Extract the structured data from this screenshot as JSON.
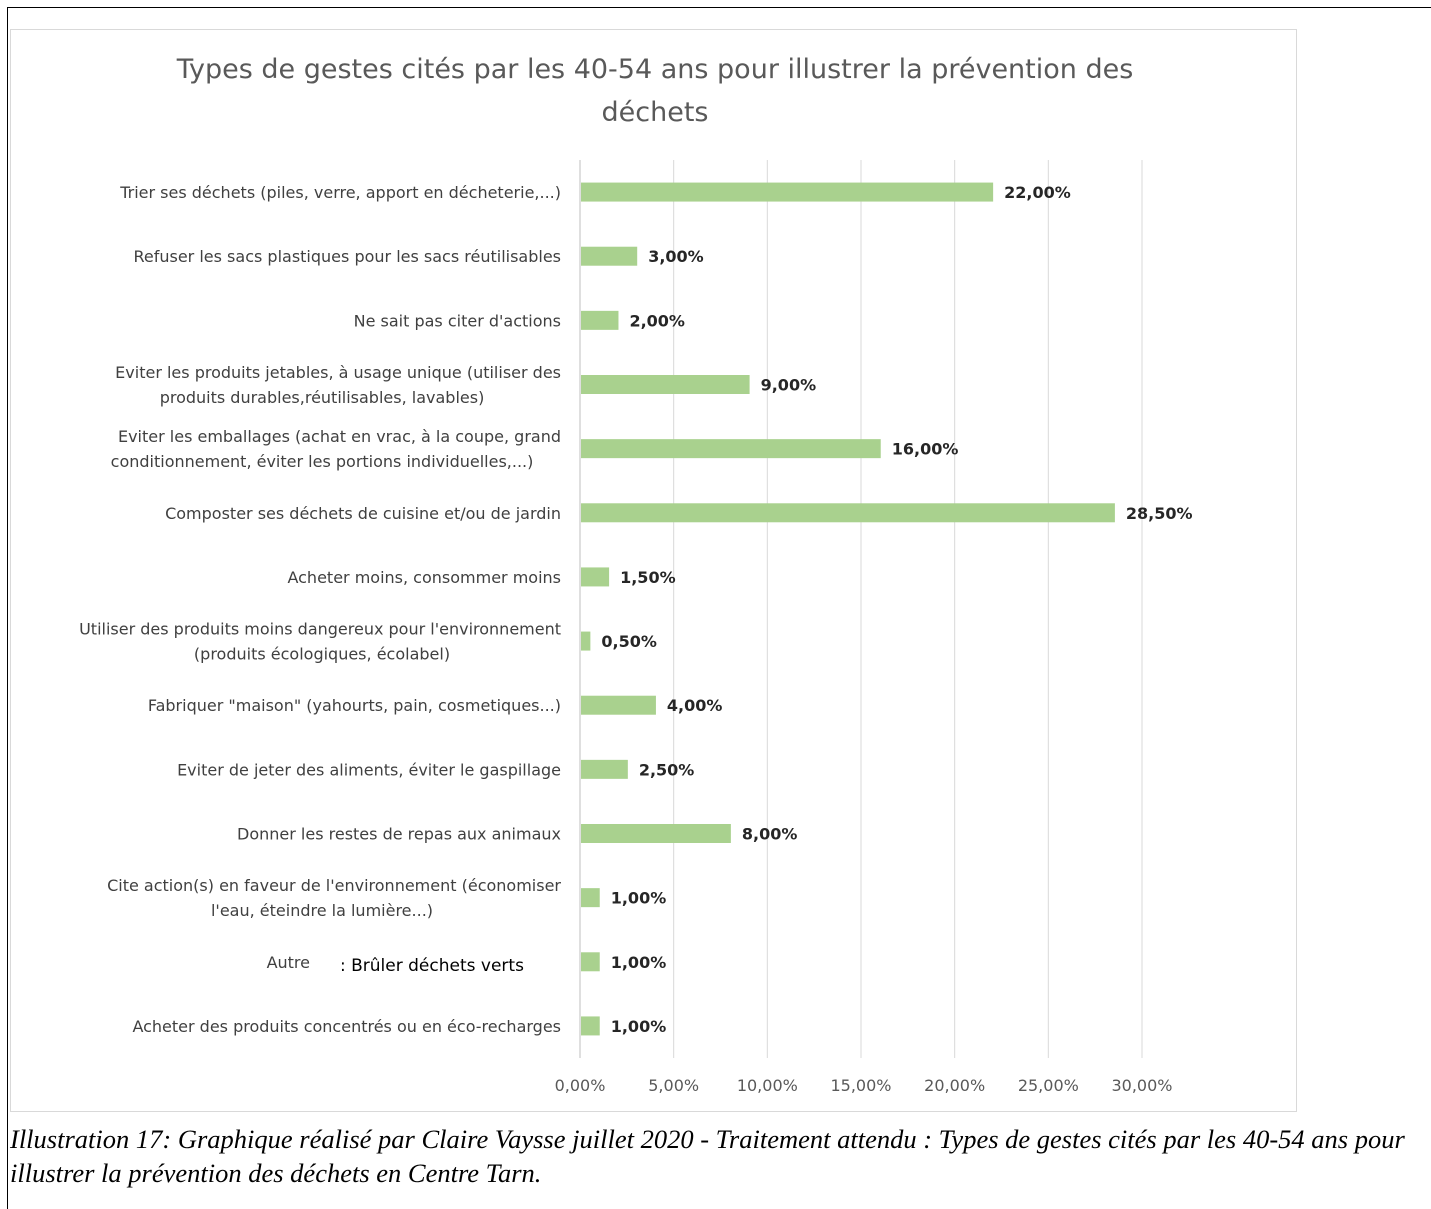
{
  "chart_data": {
    "type": "bar",
    "orientation": "horizontal",
    "title": "Types de gestes cités par les 40-54 ans pour illustrer la prévention des déchets",
    "title_lines": [
      "Types de gestes cités par les 40-54 ans pour illustrer la prévention des",
      "déchets"
    ],
    "categories": [
      "Trier ses déchets (piles, verre, apport en décheterie,...)",
      "Refuser les sacs plastiques pour les sacs réutilisables",
      "Ne sait pas citer d'actions",
      "Eviter les produits jetables, à usage unique (utiliser des produits durables,réutilisables, lavables)",
      "Eviter les emballages (achat en vrac, à la coupe, grand conditionnement, éviter les portions individuelles,...)",
      "Composter ses déchets de cuisine et/ou de jardin",
      "Acheter moins, consommer moins",
      "Utiliser des produits moins dangereux pour l'environnement (produits écologiques, écolabel)",
      "Fabriquer \"maison\" (yahourts, pain, cosmetiques...)",
      "Eviter de jeter des aliments, éviter le gaspillage",
      "Donner les restes de repas aux animaux",
      "Cite action(s) en faveur de l'environnement (économiser l'eau, éteindre la lumière...)",
      "Autre",
      "Acheter des produits concentrés ou en éco-recharges"
    ],
    "category_lines": [
      [
        "Trier ses déchets (piles, verre, apport en décheterie,...)"
      ],
      [
        "Refuser les sacs plastiques pour les sacs réutilisables"
      ],
      [
        "Ne sait pas citer d'actions"
      ],
      [
        "Eviter les produits jetables, à usage unique (utiliser des",
        "produits durables,réutilisables, lavables)"
      ],
      [
        "Eviter les emballages (achat en vrac, à la coupe, grand",
        "conditionnement, éviter les portions individuelles,...)"
      ],
      [
        "Composter ses déchets de cuisine et/ou de jardin"
      ],
      [
        "Acheter moins, consommer moins"
      ],
      [
        "Utiliser des produits moins dangereux pour l'environnement",
        "(produits écologiques, écolabel)"
      ],
      [
        "Fabriquer \"maison\" (yahourts, pain, cosmetiques...)"
      ],
      [
        "Eviter de jeter des aliments, éviter le gaspillage"
      ],
      [
        "Donner les restes de repas aux animaux"
      ],
      [
        "Cite action(s) en faveur de l'environnement (économiser",
        "l'eau, éteindre la lumière...)"
      ],
      [
        "Autre"
      ],
      [
        "Acheter des produits concentrés ou en éco-recharges"
      ]
    ],
    "values": [
      22.0,
      3.0,
      2.0,
      9.0,
      16.0,
      28.5,
      1.5,
      0.5,
      4.0,
      2.5,
      8.0,
      1.0,
      1.0,
      1.0
    ],
    "value_labels": [
      "22,00%",
      "3,00%",
      "2,00%",
      "9,00%",
      "16,00%",
      "28,50%",
      "1,50%",
      "0,50%",
      "4,00%",
      "2,50%",
      "8,00%",
      "1,00%",
      "1,00%",
      "1,00%"
    ],
    "annotation": ": Brûler déchets verts",
    "xlim": [
      0,
      30
    ],
    "xticks": [
      "0,00%",
      "5,00%",
      "10,00%",
      "15,00%",
      "20,00%",
      "25,00%",
      "30,00%"
    ],
    "grid": true,
    "bar_color": "#a9d18e",
    "gridline_color": "#d9d9d9"
  },
  "caption": "Illustration 17: Graphique réalisé par Claire Vaysse juillet 2020 - Traitement attendu : Types de gestes cités par les 40-54 ans pour illustrer la prévention des déchets en Centre Tarn."
}
